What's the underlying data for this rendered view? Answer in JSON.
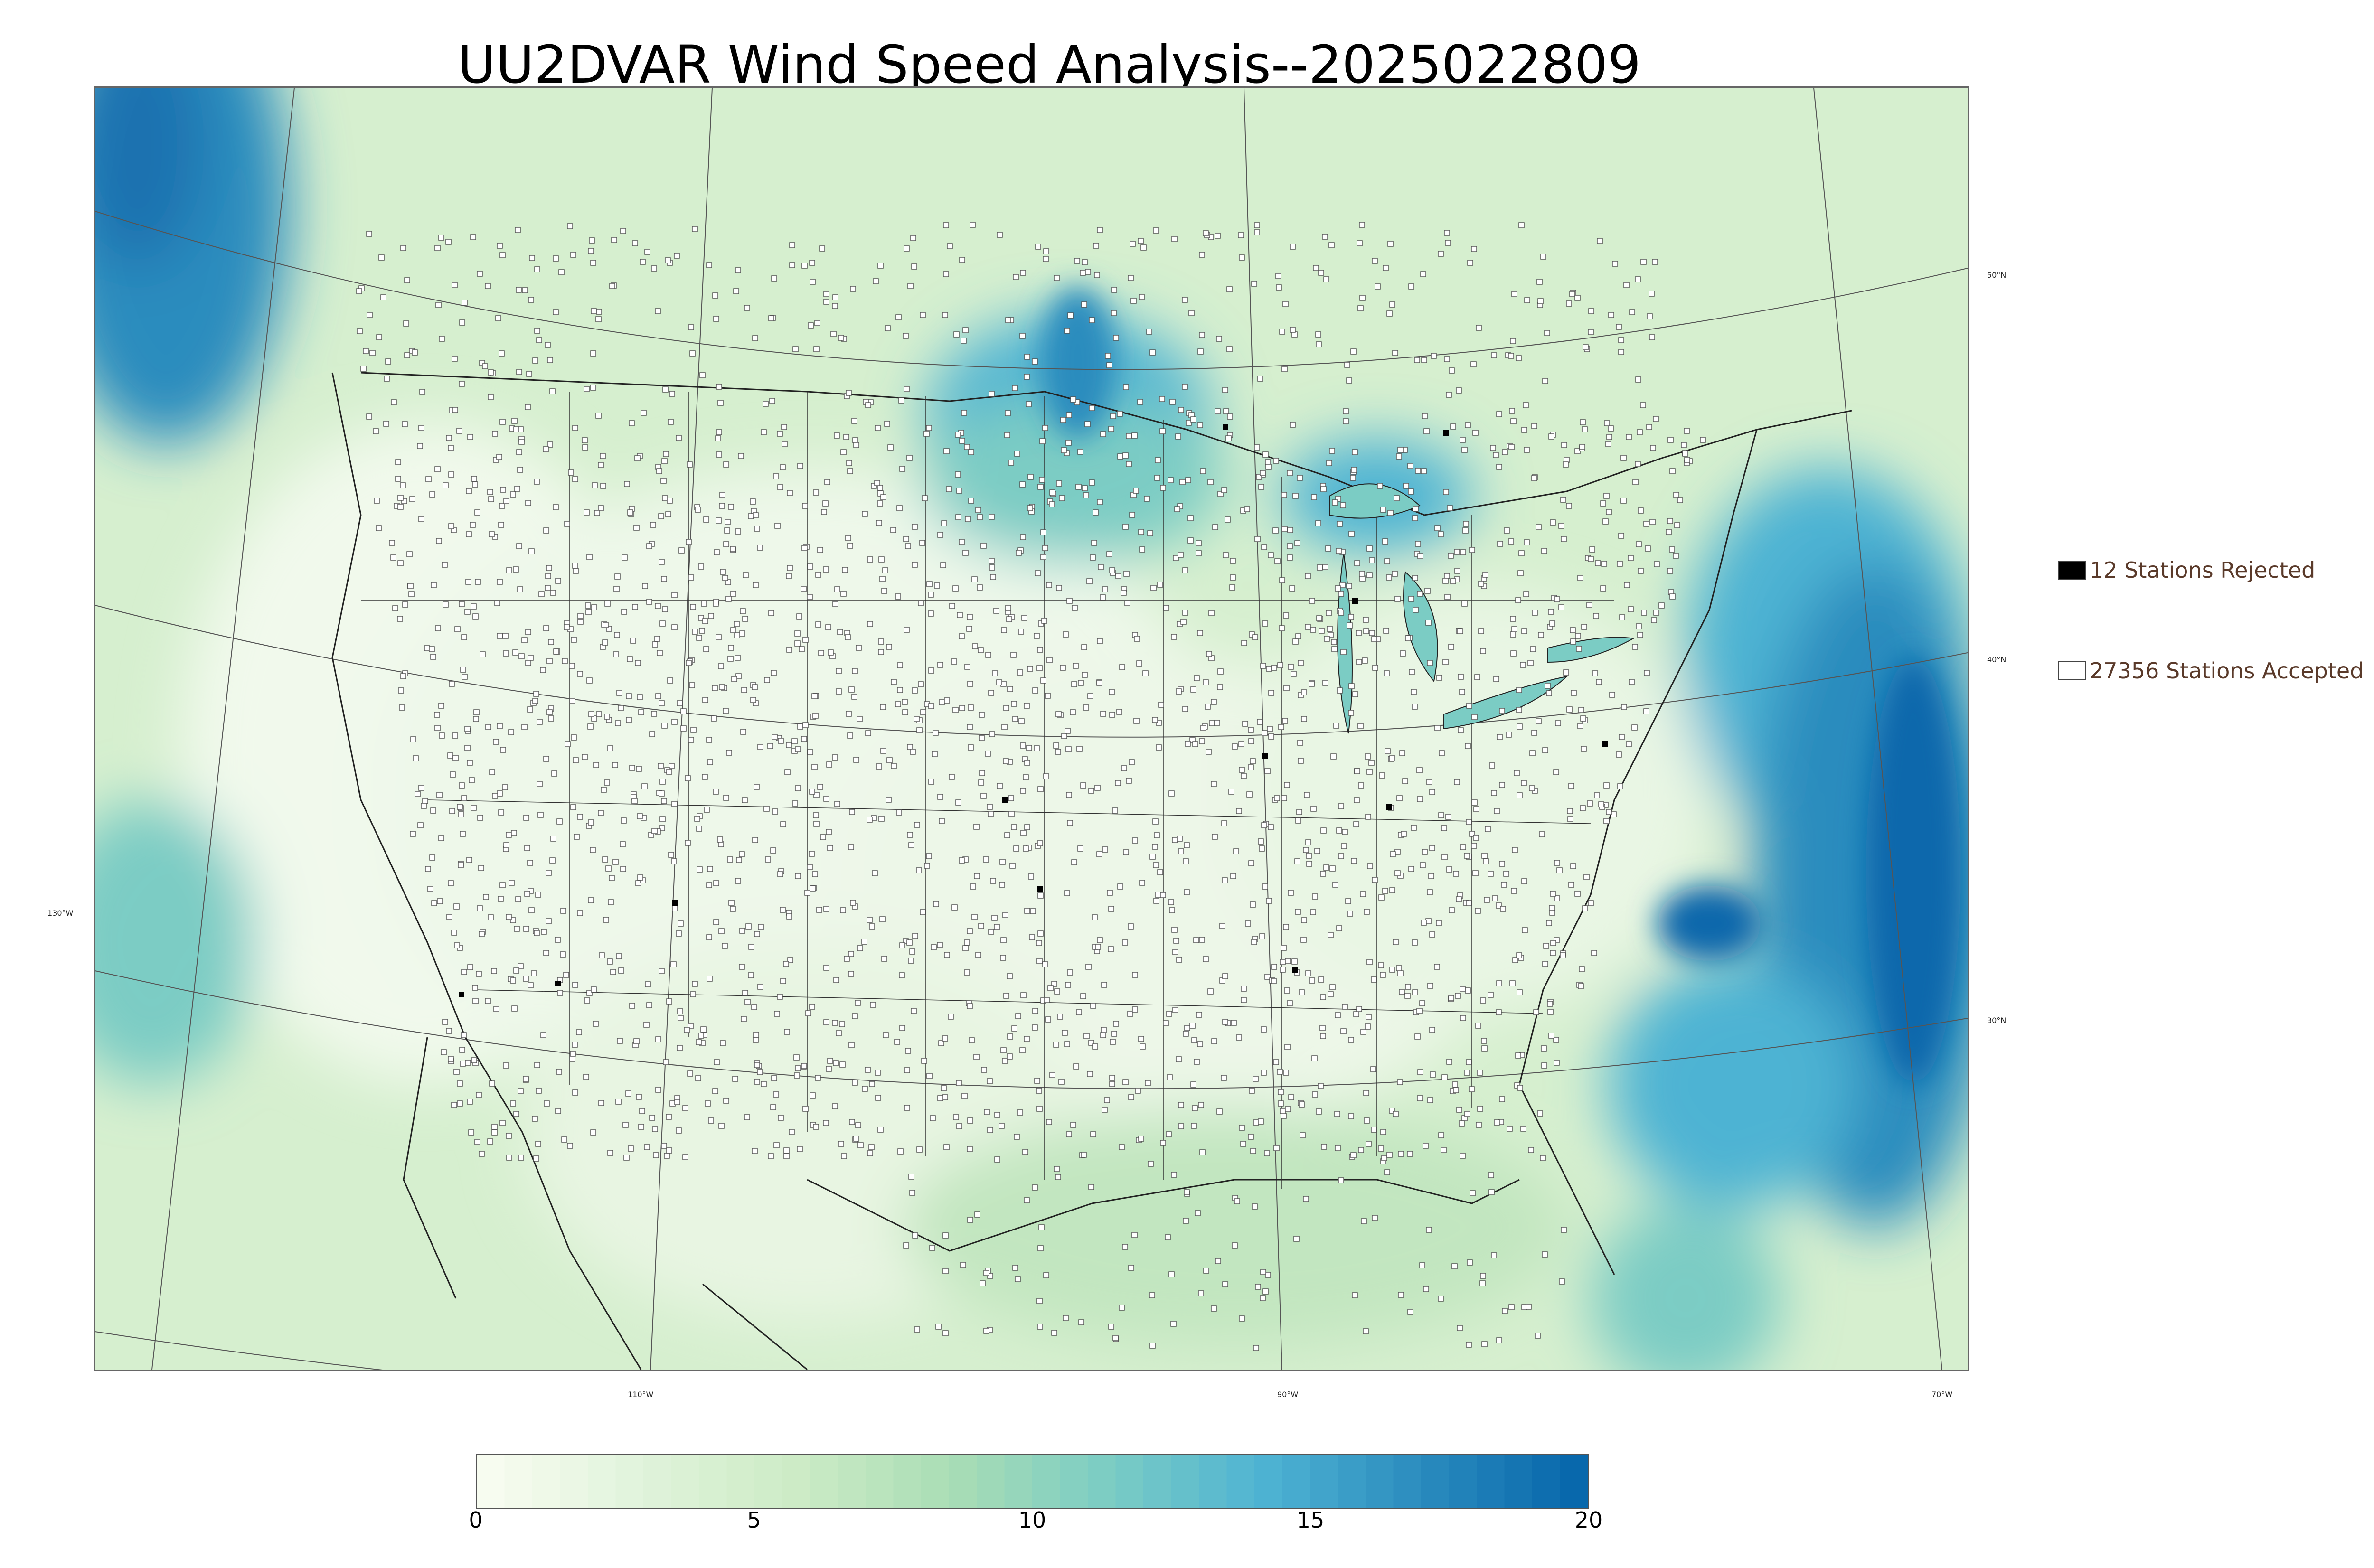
{
  "title": "UU2DVAR Wind Speed Analysis--2025022809",
  "map": {
    "variable": "wind speed",
    "colormap": "GnBu",
    "colormap_colors": [
      "#f7fcf0",
      "#e0f3db",
      "#ccebc5",
      "#a8ddb5",
      "#7bccc4",
      "#4eb3d3",
      "#2b8cbe",
      "#0868ac"
    ],
    "lat_labels": [
      "50°N",
      "40°N",
      "30°N"
    ],
    "lon_labels": [
      "130°W",
      "110°W",
      "90°W",
      "70°W"
    ]
  },
  "legend": {
    "rejected": {
      "label": "12 Stations Rejected",
      "color": "#000000"
    },
    "accepted": {
      "label": "27356 Stations Accepted",
      "color": "#ffffff"
    }
  },
  "colorbar": {
    "min": 0,
    "max": 20,
    "ticks": [
      "0",
      "5",
      "10",
      "15",
      "20"
    ]
  }
}
